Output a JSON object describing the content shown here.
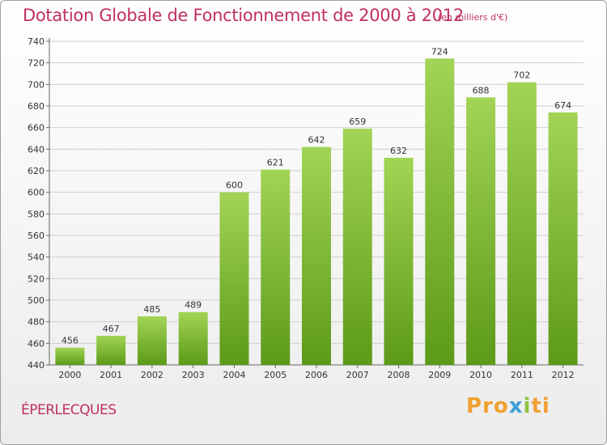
{
  "header": {
    "title": "Dotation Globale de Fonctionnement de 2000 à 2012",
    "unit": "(en milliers d'€)"
  },
  "footer": {
    "place": "ÉPERLECQUES",
    "logo": [
      "Pro",
      "x",
      "i",
      "ti"
    ]
  },
  "colors": {
    "bar_top": "#a2d455",
    "bar_bottom": "#5c9a18",
    "grid": "#d0d0d0",
    "title": "#c0305c"
  },
  "chart_data": {
    "type": "bar",
    "title": "Dotation Globale de Fonctionnement de 2000 à 2012",
    "subtitle": "(en milliers d'€)",
    "xlabel": "",
    "ylabel": "",
    "categories": [
      "2000",
      "2001",
      "2002",
      "2003",
      "2004",
      "2005",
      "2006",
      "2007",
      "2008",
      "2009",
      "2010",
      "2011",
      "2012"
    ],
    "values": [
      456,
      467,
      485,
      489,
      600,
      621,
      642,
      659,
      632,
      724,
      688,
      702,
      674
    ],
    "ylim": [
      440,
      740
    ],
    "yticks": [
      440,
      460,
      480,
      500,
      520,
      540,
      560,
      580,
      600,
      620,
      640,
      660,
      680,
      700,
      720,
      740
    ],
    "grid": true,
    "legend": "none"
  }
}
